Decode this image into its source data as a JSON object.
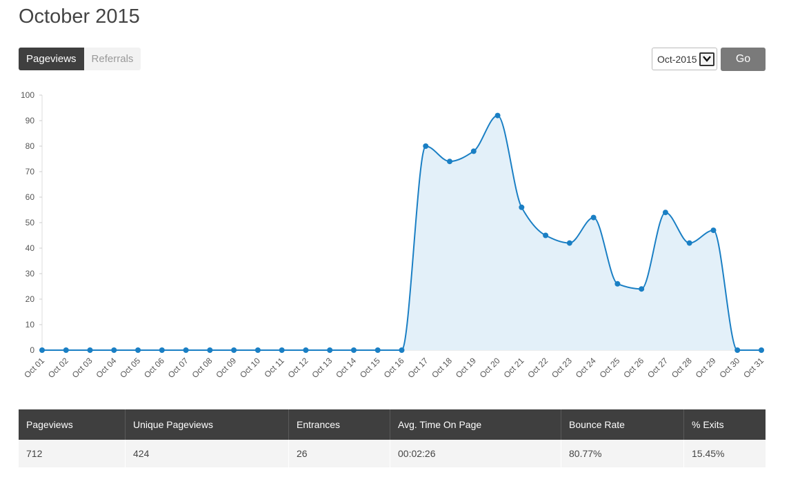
{
  "page": {
    "title": "October 2015"
  },
  "tabs": [
    {
      "label": "Pageviews",
      "active": true
    },
    {
      "label": "Referrals",
      "active": false
    }
  ],
  "controls": {
    "month_value": "Oct-2015",
    "go_label": "Go"
  },
  "colors": {
    "line": "#1a7fc4",
    "fill": "#e3f0f9",
    "header_bg": "#3f3f3f"
  },
  "chart_data": {
    "type": "area",
    "title": "",
    "xlabel": "",
    "ylabel": "",
    "ylim": [
      0,
      100
    ],
    "yticks": [
      0,
      10,
      20,
      30,
      40,
      50,
      60,
      70,
      80,
      90,
      100
    ],
    "grid": false,
    "categories": [
      "Oct 01",
      "Oct 02",
      "Oct 03",
      "Oct 04",
      "Oct 05",
      "Oct 06",
      "Oct 07",
      "Oct 08",
      "Oct 09",
      "Oct 10",
      "Oct 11",
      "Oct 12",
      "Oct 13",
      "Oct 14",
      "Oct 15",
      "Oct 16",
      "Oct 17",
      "Oct 18",
      "Oct 19",
      "Oct 20",
      "Oct 21",
      "Oct 22",
      "Oct 23",
      "Oct 24",
      "Oct 25",
      "Oct 26",
      "Oct 27",
      "Oct 28",
      "Oct 29",
      "Oct 30",
      "Oct 31"
    ],
    "values": [
      0,
      0,
      0,
      0,
      0,
      0,
      0,
      0,
      0,
      0,
      0,
      0,
      0,
      0,
      0,
      0,
      80,
      74,
      78,
      92,
      56,
      45,
      42,
      52,
      26,
      24,
      54,
      42,
      47,
      0,
      0
    ]
  },
  "stats": {
    "headers": [
      "Pageviews",
      "Unique Pageviews",
      "Entrances",
      "Avg. Time On Page",
      "Bounce Rate",
      "% Exits"
    ],
    "values": [
      "712",
      "424",
      "26",
      "00:02:26",
      "80.77%",
      "15.45%"
    ]
  }
}
